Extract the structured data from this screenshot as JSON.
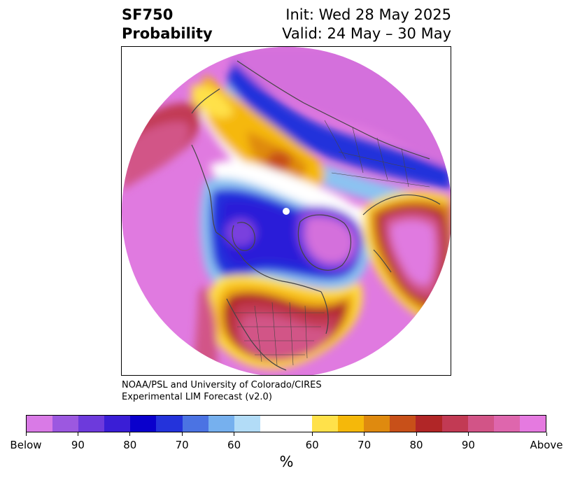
{
  "title": {
    "left_line1": "SF750",
    "left_line2": "Probability",
    "right_line1": "Init: Wed 28 May 2025",
    "right_line2": "Valid: 24 May – 30 May"
  },
  "credit": {
    "line1": "NOAA/PSL and University of Colorado/CIRES",
    "line2": "Experimental LIM Forecast (v2.0)"
  },
  "colorbar": {
    "colors": [
      "#d97ae6",
      "#9c58e0",
      "#6d3adc",
      "#3a1ed6",
      "#0a00cc",
      "#2433db",
      "#4b73e3",
      "#76b0ee",
      "#b2dcf7",
      "#ffffff",
      "#ffffff",
      "#ffe14a",
      "#f5b80a",
      "#df8a0f",
      "#c85019",
      "#b12627",
      "#c23a54",
      "#d25487",
      "#de66ad",
      "#e57ae0"
    ],
    "tick_labels": [
      "Below",
      "90",
      "80",
      "70",
      "60",
      "60",
      "70",
      "80",
      "90",
      "Above"
    ],
    "unit": "%"
  },
  "map": {
    "projection": "north-polar-stereographic",
    "palette": {
      "magenta": "#e07ae0",
      "orchid": "#d470dc",
      "violet": "#7a3fde",
      "deep_blue": "#2a1fd8",
      "blue": "#2433db",
      "light_blue": "#8cc3f1",
      "white": "#ffffff",
      "yellow": "#ffe14a",
      "gold": "#f5b80a",
      "orange": "#df8a0f",
      "red": "#b12627",
      "rose": "#c23a54",
      "pink": "#d25487",
      "coast": "#444444"
    }
  }
}
